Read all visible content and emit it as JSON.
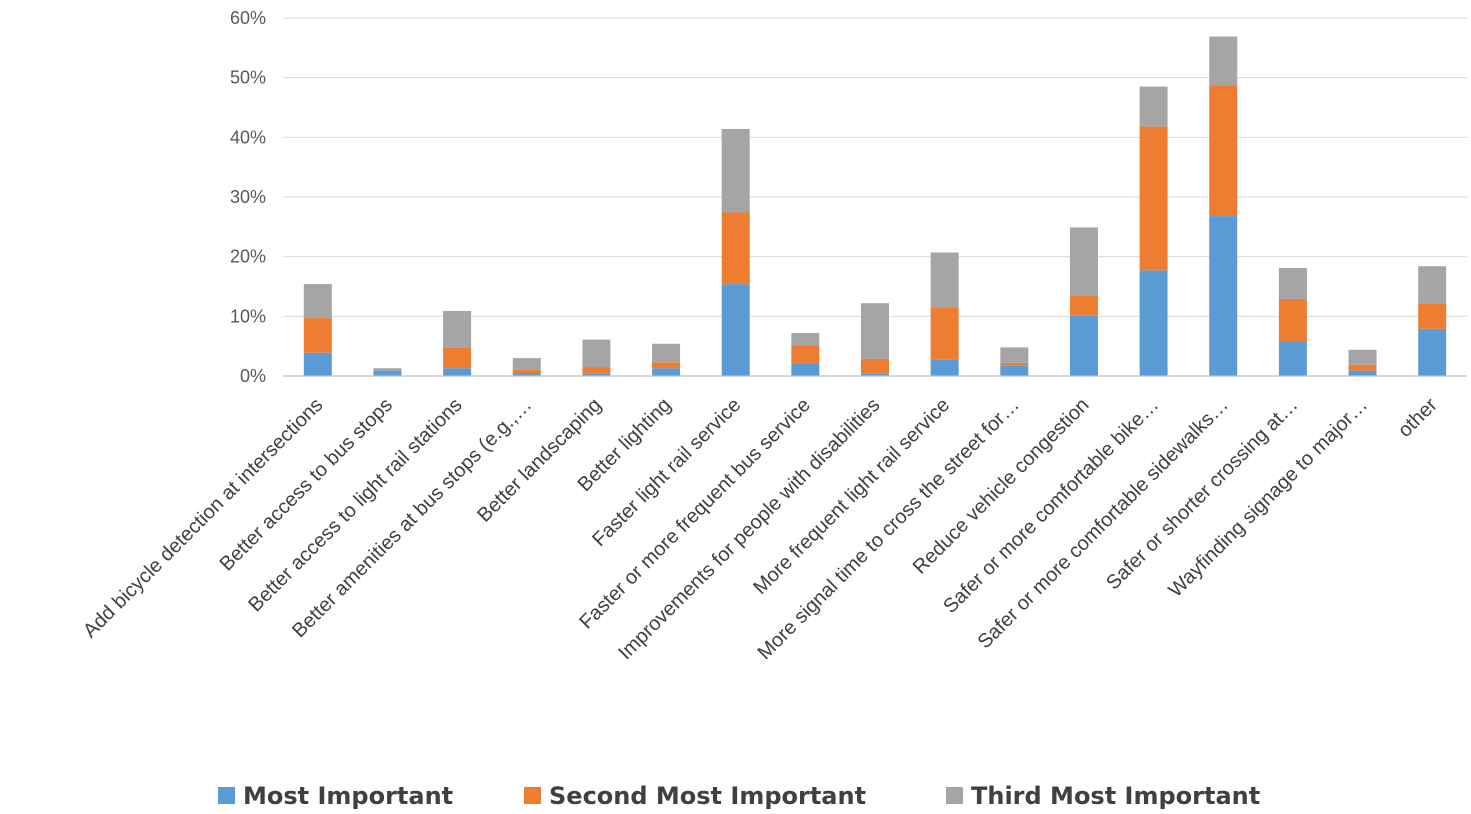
{
  "chart_data": {
    "type": "bar",
    "stacked": true,
    "title": "",
    "xlabel": "",
    "ylabel": "",
    "ylim": [
      0,
      0.6
    ],
    "yticks": [
      0,
      0.1,
      0.2,
      0.3,
      0.4,
      0.5,
      0.6
    ],
    "ytick_labels": [
      "0%",
      "10%",
      "20%",
      "30%",
      "40%",
      "50%",
      "60%"
    ],
    "grid": true,
    "legend_position": "bottom",
    "categories": [
      "Add bicycle detection at intersections",
      "Better access to bus stops",
      "Better access to light rail stations",
      "Better amenities at bus stops (e.g.,…",
      "Better landscaping",
      "Better lighting",
      "Faster light rail service",
      "Faster or more frequent bus service",
      "Improvements for people with disabilities",
      "More frequent light rail service",
      "More signal time to cross the street for…",
      "Reduce vehicle congestion",
      "Safer or more comfortable bike…",
      "Safer or more comfortable sidewalks…",
      "Safer or shorter crossing at…",
      "Wayfinding signage to major…",
      "other"
    ],
    "series": [
      {
        "name": "Most Important",
        "color": "#5b9bd5",
        "values": [
          0.039,
          0.009,
          0.013,
          0.005,
          0.004,
          0.013,
          0.154,
          0.021,
          0.004,
          0.027,
          0.017,
          0.101,
          0.177,
          0.268,
          0.057,
          0.009,
          0.079
        ]
      },
      {
        "name": "Second Most Important",
        "color": "#ed7d31",
        "values": [
          0.058,
          0.0,
          0.034,
          0.005,
          0.011,
          0.01,
          0.12,
          0.03,
          0.025,
          0.087,
          0.005,
          0.033,
          0.241,
          0.219,
          0.072,
          0.01,
          0.043
        ]
      },
      {
        "name": "Third Most Important",
        "color": "#a5a5a5",
        "values": [
          0.057,
          0.004,
          0.062,
          0.02,
          0.046,
          0.031,
          0.14,
          0.021,
          0.093,
          0.093,
          0.026,
          0.115,
          0.067,
          0.082,
          0.052,
          0.025,
          0.062
        ]
      }
    ]
  }
}
